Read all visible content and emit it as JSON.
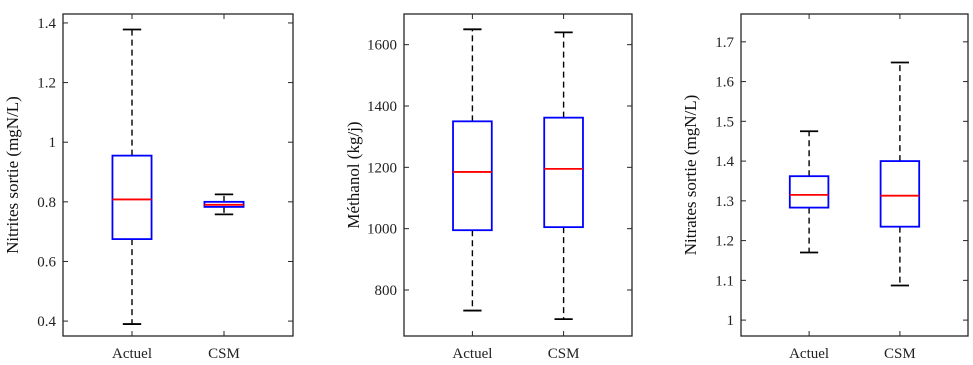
{
  "chart_data": [
    {
      "type": "box",
      "title": "",
      "xlabel": "",
      "ylabel": "Nitrites sortie (mgN/L)",
      "ylim": [
        0.35,
        1.43
      ],
      "yticks": [
        0.4,
        0.6,
        0.8,
        1,
        1.2,
        1.4
      ],
      "ytick_labels": [
        "0.4",
        "0.6",
        "0.8",
        "1",
        "1.2",
        "1.4"
      ],
      "categories": [
        "Actuel",
        "CSM"
      ],
      "boxes": [
        {
          "min": 0.39,
          "q1": 0.675,
          "median": 0.808,
          "q3": 0.955,
          "max": 1.378
        },
        {
          "min": 0.758,
          "q1": 0.783,
          "median": 0.79,
          "q3": 0.8,
          "max": 0.825
        }
      ],
      "colors": {
        "box": "#0000ff",
        "median": "#ff0000",
        "whisker": "#000000"
      },
      "grid": false
    },
    {
      "type": "box",
      "title": "",
      "xlabel": "",
      "ylabel": "Méthanol (kg/j)",
      "ylim": [
        650,
        1700
      ],
      "yticks": [
        800,
        1000,
        1200,
        1400,
        1600
      ],
      "ytick_labels": [
        "800",
        "1000",
        "1200",
        "1400",
        "1600"
      ],
      "categories": [
        "Actuel",
        "CSM"
      ],
      "boxes": [
        {
          "min": 733,
          "q1": 995,
          "median": 1185,
          "q3": 1350,
          "max": 1650
        },
        {
          "min": 705,
          "q1": 1005,
          "median": 1195,
          "q3": 1362,
          "max": 1640
        }
      ],
      "colors": {
        "box": "#0000ff",
        "median": "#ff0000",
        "whisker": "#000000"
      },
      "grid": false
    },
    {
      "type": "box",
      "title": "",
      "xlabel": "",
      "ylabel": "Nitrates sortie (mgN/L)",
      "ylim": [
        0.96,
        1.77
      ],
      "yticks": [
        1,
        1.1,
        1.2,
        1.3,
        1.4,
        1.5,
        1.6,
        1.7
      ],
      "ytick_labels": [
        "1",
        "1.1",
        "1.2",
        "1.3",
        "1.4",
        "1.5",
        "1.6",
        "1.7"
      ],
      "categories": [
        "Actuel",
        "CSM"
      ],
      "boxes": [
        {
          "min": 1.17,
          "q1": 1.283,
          "median": 1.315,
          "q3": 1.362,
          "max": 1.475
        },
        {
          "min": 1.087,
          "q1": 1.235,
          "median": 1.313,
          "q3": 1.4,
          "max": 1.648
        }
      ],
      "colors": {
        "box": "#0000ff",
        "median": "#ff0000",
        "whisker": "#000000"
      },
      "grid": false
    }
  ]
}
